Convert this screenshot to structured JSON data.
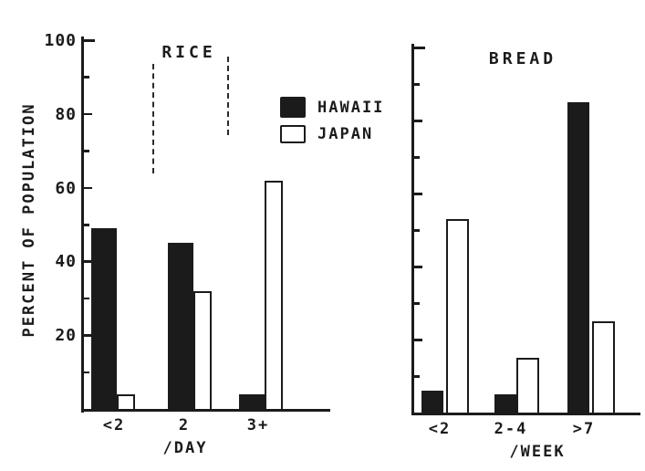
{
  "figure": {
    "y_axis_label": "PERCENT OF POPULATION",
    "y_tick_labels": [
      "100",
      "80",
      "60",
      "40",
      "20"
    ],
    "y_tick_values": [
      100,
      80,
      60,
      40,
      20
    ],
    "legend": [
      {
        "label": "HAWAII",
        "swatch": "filled-black"
      },
      {
        "label": "JAPAN",
        "swatch": "open-white"
      }
    ],
    "colors": {
      "ink": "#1b1b1b",
      "paper": "#ffffff",
      "hawaii_fill": "#1b1b1b",
      "japan_fill": "#ffffff"
    }
  },
  "chart_data": [
    {
      "type": "bar",
      "title": "RICE",
      "xlabel": "/DAY",
      "ylabel": "PERCENT OF POPULATION",
      "ylim": [
        0,
        100
      ],
      "grid": false,
      "legend_position": "right-of-panel",
      "categories": [
        "<2",
        "2",
        "3+"
      ],
      "series": [
        {
          "name": "HAWAII",
          "fill": "solid-black",
          "values": [
            49,
            45,
            4
          ]
        },
        {
          "name": "JAPAN",
          "fill": "open-white",
          "values": [
            4,
            32,
            62
          ]
        }
      ]
    },
    {
      "type": "bar",
      "title": "BREAD",
      "xlabel": "/WEEK",
      "ylabel": "PERCENT OF POPULATION",
      "ylim": [
        0,
        100
      ],
      "grid": false,
      "categories": [
        "<2",
        "2-4",
        ">7"
      ],
      "series": [
        {
          "name": "HAWAII",
          "fill": "solid-black",
          "values": [
            6,
            5,
            85
          ]
        },
        {
          "name": "JAPAN",
          "fill": "open-white",
          "values": [
            53,
            15,
            25
          ]
        }
      ]
    }
  ]
}
